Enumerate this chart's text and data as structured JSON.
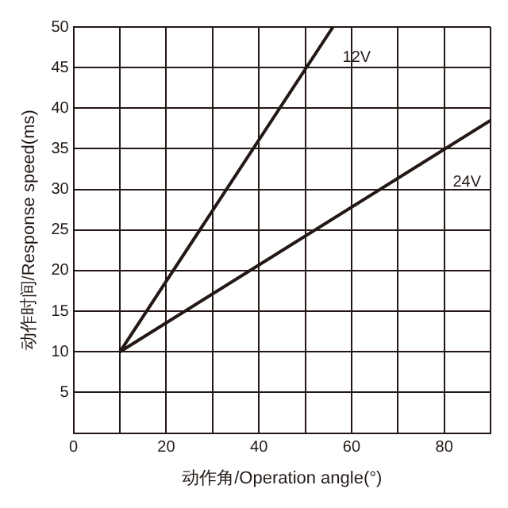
{
  "chart_data": {
    "type": "line",
    "xlabel": "动作角/Operation angle(°)",
    "ylabel": "动作时间/Response speed(ms)",
    "series": [
      {
        "name": "12V",
        "color": "#231815",
        "x": [
          10,
          56
        ],
        "values": [
          10,
          50
        ]
      },
      {
        "name": "24V",
        "color": "#231815",
        "x": [
          10,
          90
        ],
        "values": [
          10,
          38.5
        ]
      }
    ],
    "xlim": [
      0,
      90
    ],
    "xticks": [
      0,
      {
        "value": 10,
        "label": null
      },
      20,
      {
        "value": 30,
        "label": null
      },
      40,
      {
        "value": 50,
        "label": null
      },
      60,
      {
        "value": 70,
        "label": null
      },
      80,
      {
        "value": 90,
        "label": null
      }
    ],
    "ylim": [
      0,
      50
    ],
    "yticks": [
      {
        "value": 0,
        "label": null
      },
      5,
      10,
      15,
      20,
      25,
      30,
      35,
      40,
      45,
      50
    ],
    "grid": true,
    "legend": false,
    "marker": "none",
    "line_style": "solid"
  }
}
